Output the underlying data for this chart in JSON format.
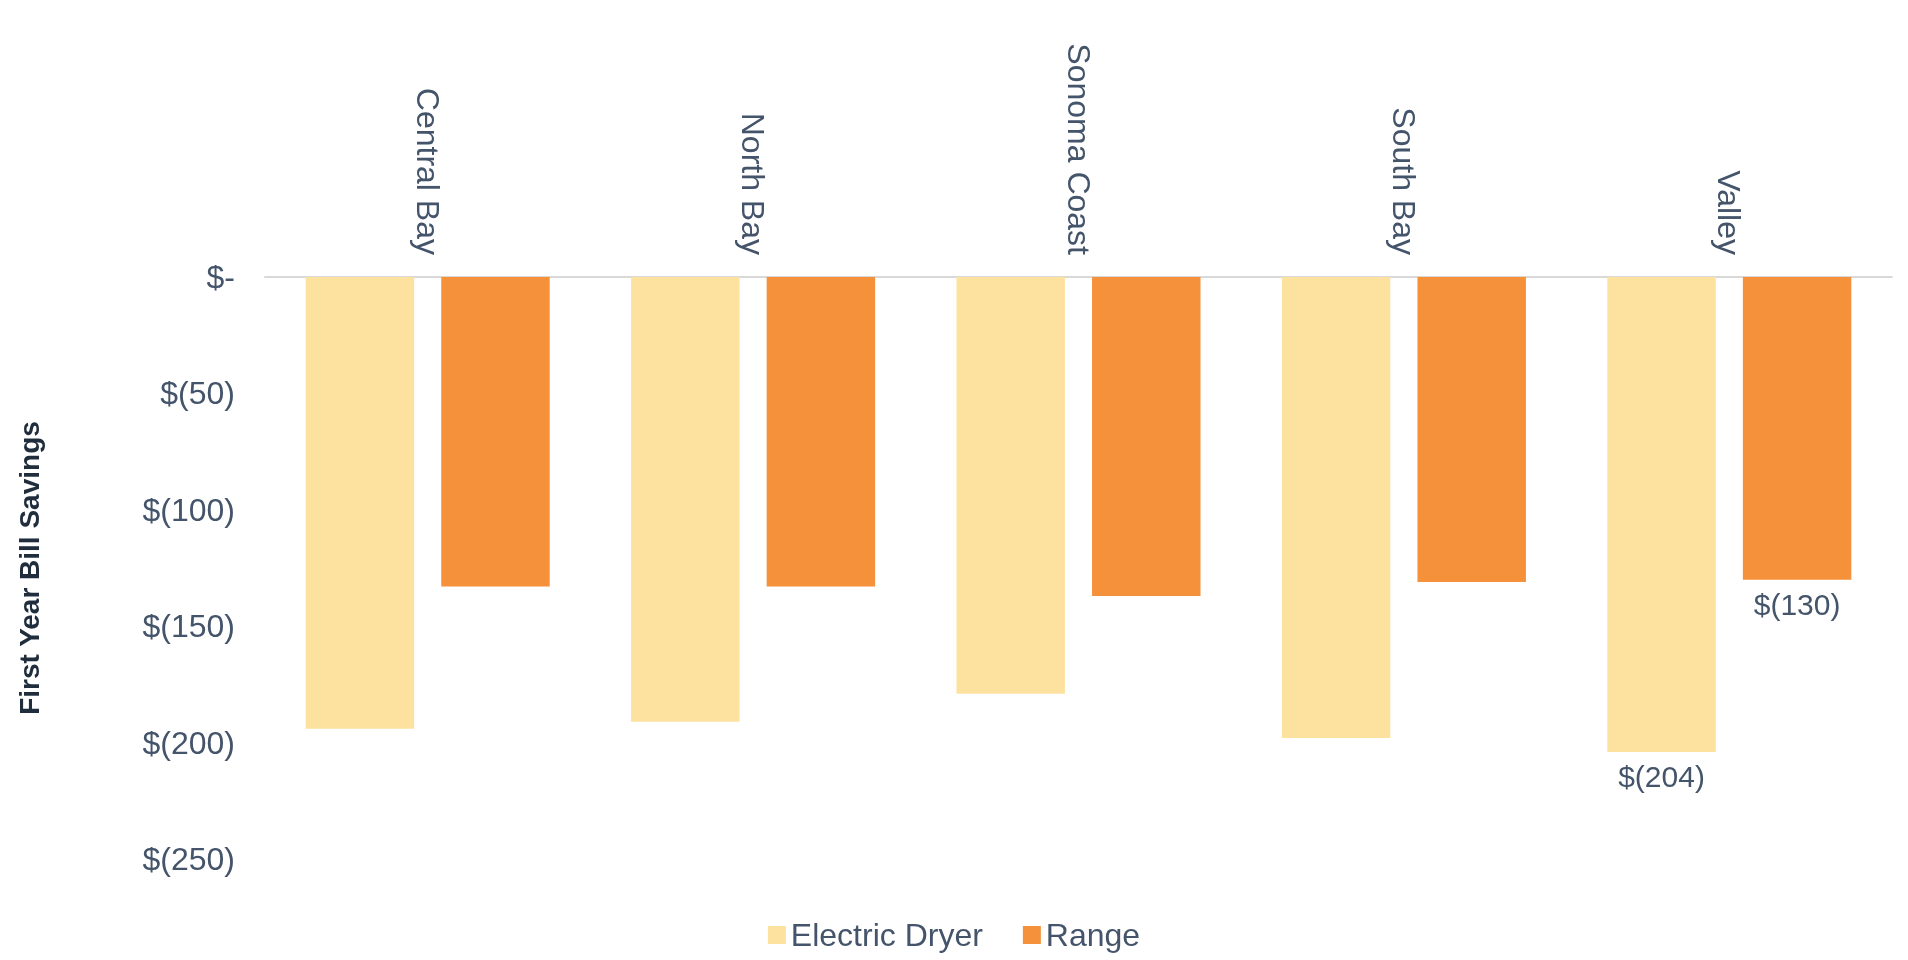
{
  "chart_data": {
    "type": "bar",
    "ylabel": "First Year Bill Savings",
    "categories": [
      "Central Bay",
      "North Bay",
      "Sonoma Coast",
      "South Bay",
      "Valley"
    ],
    "series": [
      {
        "name": "Electric Dryer",
        "color": "#fde29f",
        "values": [
          -194,
          -191,
          -179,
          -198,
          -204
        ],
        "value_labels": [
          null,
          null,
          null,
          null,
          "$(204)"
        ]
      },
      {
        "name": "Range",
        "color": "#f5903b",
        "values": [
          -133,
          -133,
          -137,
          -131,
          -130
        ],
        "value_labels": [
          null,
          null,
          null,
          null,
          "$(130)"
        ]
      }
    ],
    "ylim": [
      -250,
      0
    ],
    "yticks": [
      {
        "value": -250,
        "label": "$(250)"
      },
      {
        "value": -200,
        "label": "$(200)"
      },
      {
        "value": -150,
        "label": "$(150)"
      },
      {
        "value": -100,
        "label": "$(100)"
      },
      {
        "value": -50,
        "label": "$(50)"
      },
      {
        "value": 0,
        "label": "$-"
      }
    ],
    "grid": false,
    "legend": "bottom"
  }
}
